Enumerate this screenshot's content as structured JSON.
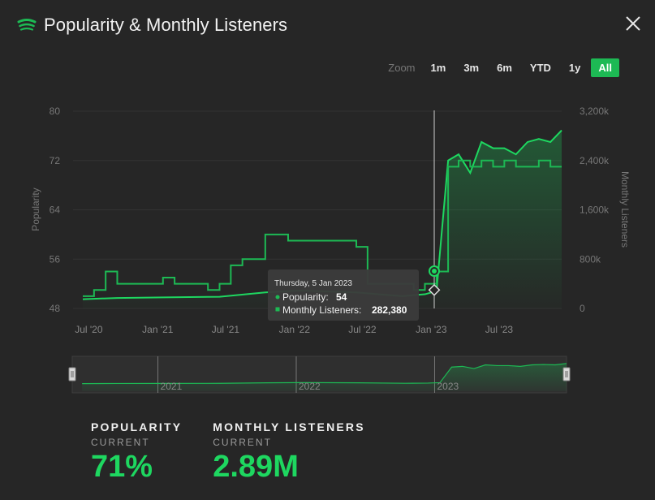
{
  "header": {
    "title": "Popularity & Monthly Listeners"
  },
  "zoom": {
    "label": "Zoom",
    "options": [
      "1m",
      "3m",
      "6m",
      "YTD",
      "1y",
      "All"
    ],
    "active": "All"
  },
  "colors": {
    "accent": "#1db954",
    "background": "#262626"
  },
  "chart_data": {
    "type": "line",
    "x_ticks": [
      "Jul '20",
      "Jan '21",
      "Jul '21",
      "Jan '22",
      "Jul '22",
      "Jan '23",
      "Jul '23"
    ],
    "y_left": {
      "label": "Popularity",
      "ticks": [
        "80",
        "72",
        "64",
        "56",
        "48"
      ],
      "range": [
        48,
        80
      ]
    },
    "y_right": {
      "label": "Monthly Listeners",
      "ticks": [
        "3,200k",
        "2,400k",
        "1,600k",
        "800k",
        "0"
      ],
      "range": [
        0,
        3200
      ]
    },
    "series": [
      {
        "name": "Popularity",
        "x": [
          "2020-06",
          "2020-07",
          "2020-08",
          "2020-09",
          "2020-10",
          "2020-11",
          "2020-12",
          "2021-01",
          "2021-02",
          "2021-03",
          "2021-04",
          "2021-05",
          "2021-06",
          "2021-07",
          "2021-08",
          "2021-09",
          "2021-10",
          "2021-11",
          "2021-12",
          "2022-01",
          "2022-02",
          "2022-03",
          "2022-04",
          "2022-05",
          "2022-06",
          "2022-07",
          "2022-08",
          "2022-09",
          "2022-10",
          "2022-11",
          "2022-12",
          "2023-01",
          "2023-02",
          "2023-03",
          "2023-04",
          "2023-05",
          "2023-06",
          "2023-07",
          "2023-08",
          "2023-09",
          "2023-10",
          "2023-11",
          "2023-12"
        ],
        "values": [
          50,
          51,
          54,
          52,
          52,
          52,
          52,
          53,
          52,
          52,
          52,
          51,
          52,
          55,
          56,
          56,
          60,
          60,
          59,
          59,
          59,
          59,
          59,
          59,
          58,
          52,
          52,
          52,
          52,
          51,
          52,
          54,
          71,
          72,
          71,
          72,
          71,
          72,
          71,
          71,
          72,
          71,
          71
        ]
      },
      {
        "name": "Monthly Listeners",
        "unit": "k",
        "x": [
          "2020-06",
          "2020-09",
          "2021-01",
          "2021-06",
          "2021-10",
          "2022-01",
          "2022-06",
          "2022-10",
          "2022-12",
          "2023-01",
          "2023-02",
          "2023-03",
          "2023-04",
          "2023-05",
          "2023-06",
          "2023-07",
          "2023-08",
          "2023-09",
          "2023-10",
          "2023-11",
          "2023-12"
        ],
        "values": [
          150,
          170,
          180,
          190,
          260,
          290,
          260,
          200,
          230,
          282.38,
          2400,
          2500,
          2200,
          2700,
          2600,
          2600,
          2500,
          2700,
          2750,
          2700,
          2890
        ]
      }
    ],
    "tooltip": {
      "date": "Thursday, 5 Jan 2023",
      "popularity_label": "Popularity:",
      "popularity_value": "54",
      "listeners_label": "Monthly Listeners:",
      "listeners_value": "282,380"
    },
    "navigator": {
      "labels": [
        "2021",
        "2022",
        "2023"
      ]
    }
  },
  "stats": [
    {
      "label": "POPULARITY",
      "sub": "CURRENT",
      "value": "71%"
    },
    {
      "label": "MONTHLY LISTENERS",
      "sub": "CURRENT",
      "value": "2.89M"
    }
  ]
}
